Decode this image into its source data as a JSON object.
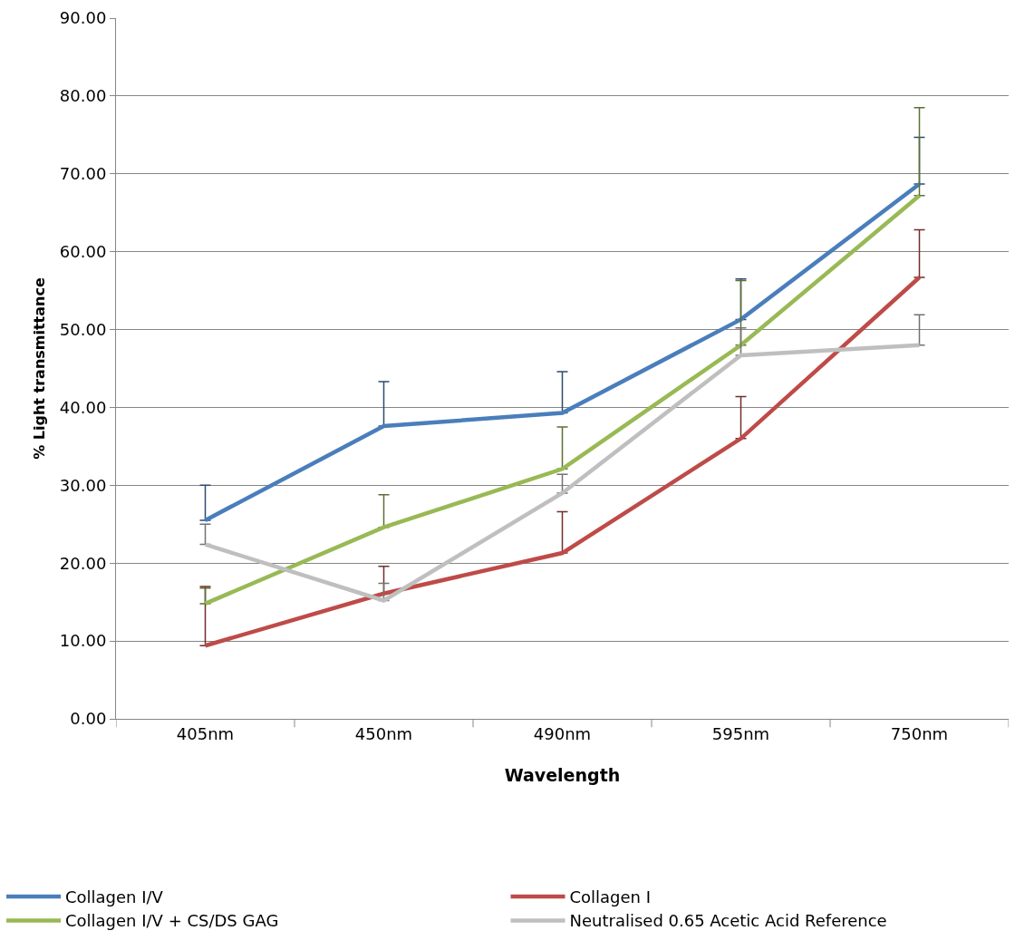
{
  "chart_data": {
    "type": "line",
    "xlabel": "Wavelength",
    "ylabel": "% Light transmittance",
    "categories": [
      "405nm",
      "450nm",
      "490nm",
      "595nm",
      "750nm"
    ],
    "series": [
      {
        "name": "Collagen I/V",
        "color": "#4a7ebb",
        "values": [
          25.5,
          37.6,
          39.3,
          51.3,
          68.7
        ],
        "errors": [
          [
            25.5,
            30.0
          ],
          [
            37.6,
            43.3
          ],
          [
            39.3,
            44.6
          ],
          [
            51.3,
            56.5
          ],
          [
            68.7,
            74.7
          ]
        ]
      },
      {
        "name": "Collagen I",
        "color": "#be4b48",
        "values": [
          9.4,
          16.1,
          21.3,
          36.0,
          56.7
        ],
        "errors": [
          [
            9.4,
            17.0
          ],
          [
            16.1,
            19.6
          ],
          [
            21.3,
            26.6
          ],
          [
            36.0,
            41.4
          ],
          [
            56.7,
            62.8
          ]
        ]
      },
      {
        "name": "Collagen I/V + CS/DS GAG",
        "color": "#98b954",
        "values": [
          14.8,
          24.6,
          32.1,
          48.0,
          67.2
        ],
        "errors": [
          [
            14.8,
            16.8
          ],
          [
            24.6,
            28.8
          ],
          [
            32.1,
            37.5
          ],
          [
            48.0,
            56.3
          ],
          [
            67.2,
            78.5
          ]
        ]
      },
      {
        "name": "Neutralised 0.65 Acetic Acid Reference",
        "color": "#bfbfbf",
        "values": [
          22.4,
          15.2,
          29.0,
          46.7,
          48.0
        ],
        "errors": [
          [
            22.4,
            25.0
          ],
          [
            15.2,
            17.4
          ],
          [
            29.0,
            31.4
          ],
          [
            46.7,
            50.2
          ],
          [
            48.0,
            51.9
          ]
        ]
      }
    ],
    "ylim": [
      0,
      90
    ],
    "yticks": [
      {
        "value": 0,
        "label": "0.00"
      },
      {
        "value": 10,
        "label": "10.00"
      },
      {
        "value": 20,
        "label": "20.00"
      },
      {
        "value": 30,
        "label": "30.00"
      },
      {
        "value": 40,
        "label": "40.00"
      },
      {
        "value": 50,
        "label": "50.00"
      },
      {
        "value": 60,
        "label": "60.00"
      },
      {
        "value": 70,
        "label": "70.00"
      },
      {
        "value": 80,
        "label": "80.00"
      },
      {
        "value": 90,
        "label": "90.00"
      }
    ],
    "grid": "y",
    "legend": "bottom",
    "marker": "none",
    "line_style": "solid"
  }
}
